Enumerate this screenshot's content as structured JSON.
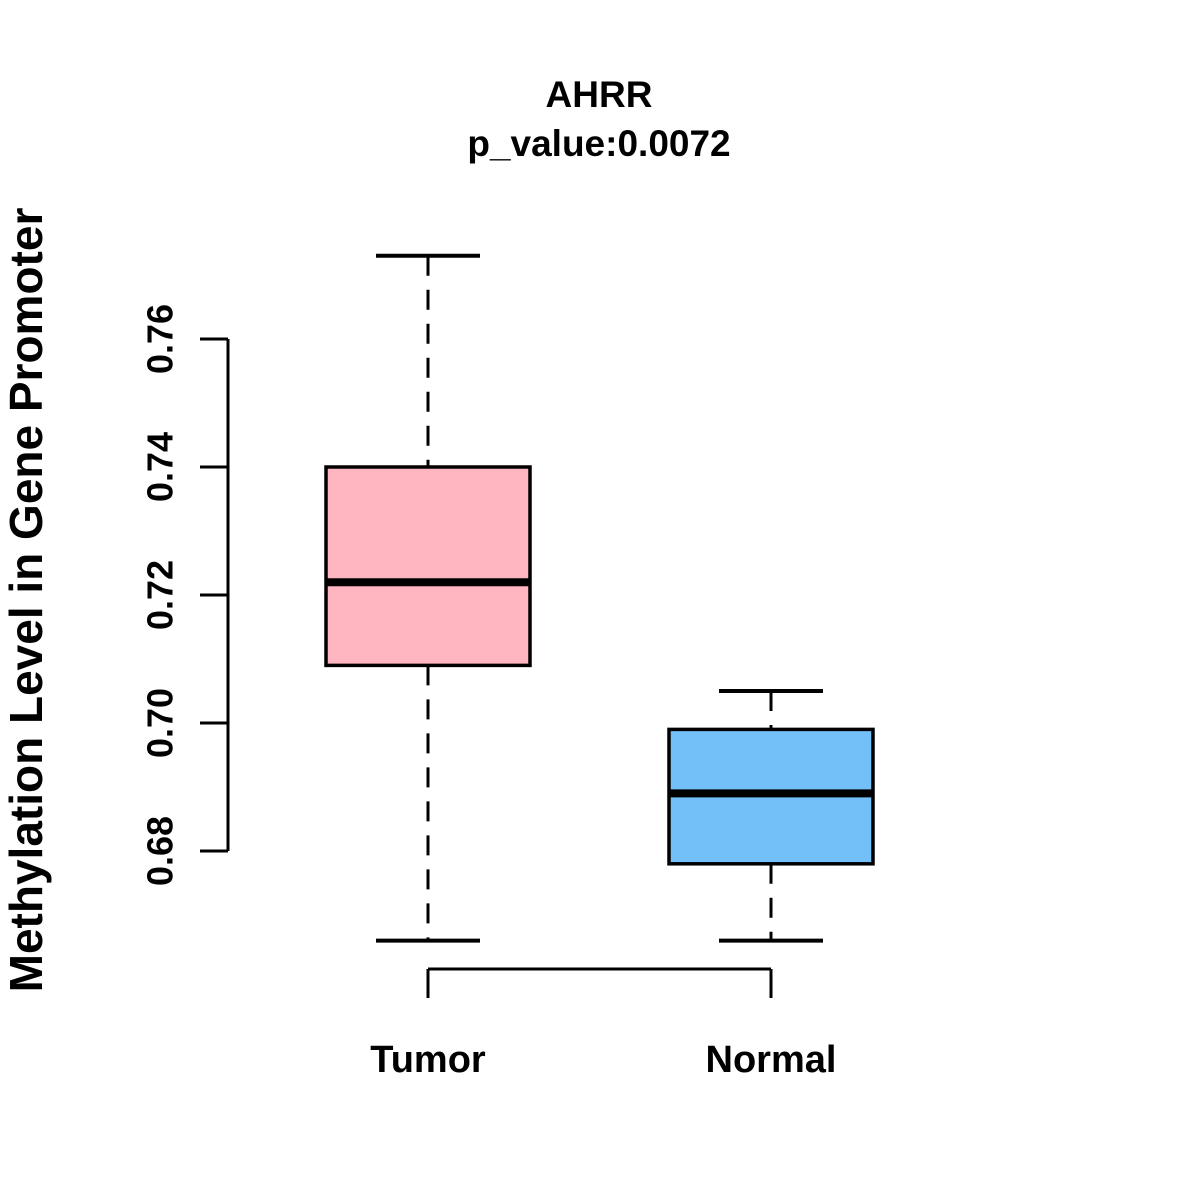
{
  "page": {
    "background": "#FFFFFF"
  },
  "chart_data": {
    "type": "boxplot",
    "title": "AHRR",
    "subtitle": "p_value:0.0072",
    "ylabel": "Methylation Level in Gene Promoter",
    "xlabel": "",
    "ylim": [
      0.68,
      0.76
    ],
    "grid": "off",
    "legend": "none",
    "yticks": [
      "0.68",
      "0.70",
      "0.72",
      "0.74",
      "0.76"
    ],
    "ytick_values": [
      0.68,
      0.7,
      0.72,
      0.74,
      0.76
    ],
    "categories": [
      "Tumor",
      "Normal"
    ],
    "groups": [
      {
        "label": "Tumor",
        "fill_color": "#FFB6C1",
        "whisker_low": 0.666,
        "q1": 0.709,
        "median": 0.722,
        "q3": 0.74,
        "whisker_high": 0.773
      },
      {
        "label": "Normal",
        "fill_color": "#73C0F8",
        "whisker_low": 0.666,
        "q1": 0.678,
        "median": 0.689,
        "q3": 0.699,
        "whisker_high": 0.705
      }
    ],
    "styles": {
      "box_border_color": "#000000",
      "median_color": "#000000",
      "whisker_color": "#000000",
      "axis_color": "#000000",
      "text_color": "#000000",
      "whisker_line_style": "dashed"
    }
  }
}
